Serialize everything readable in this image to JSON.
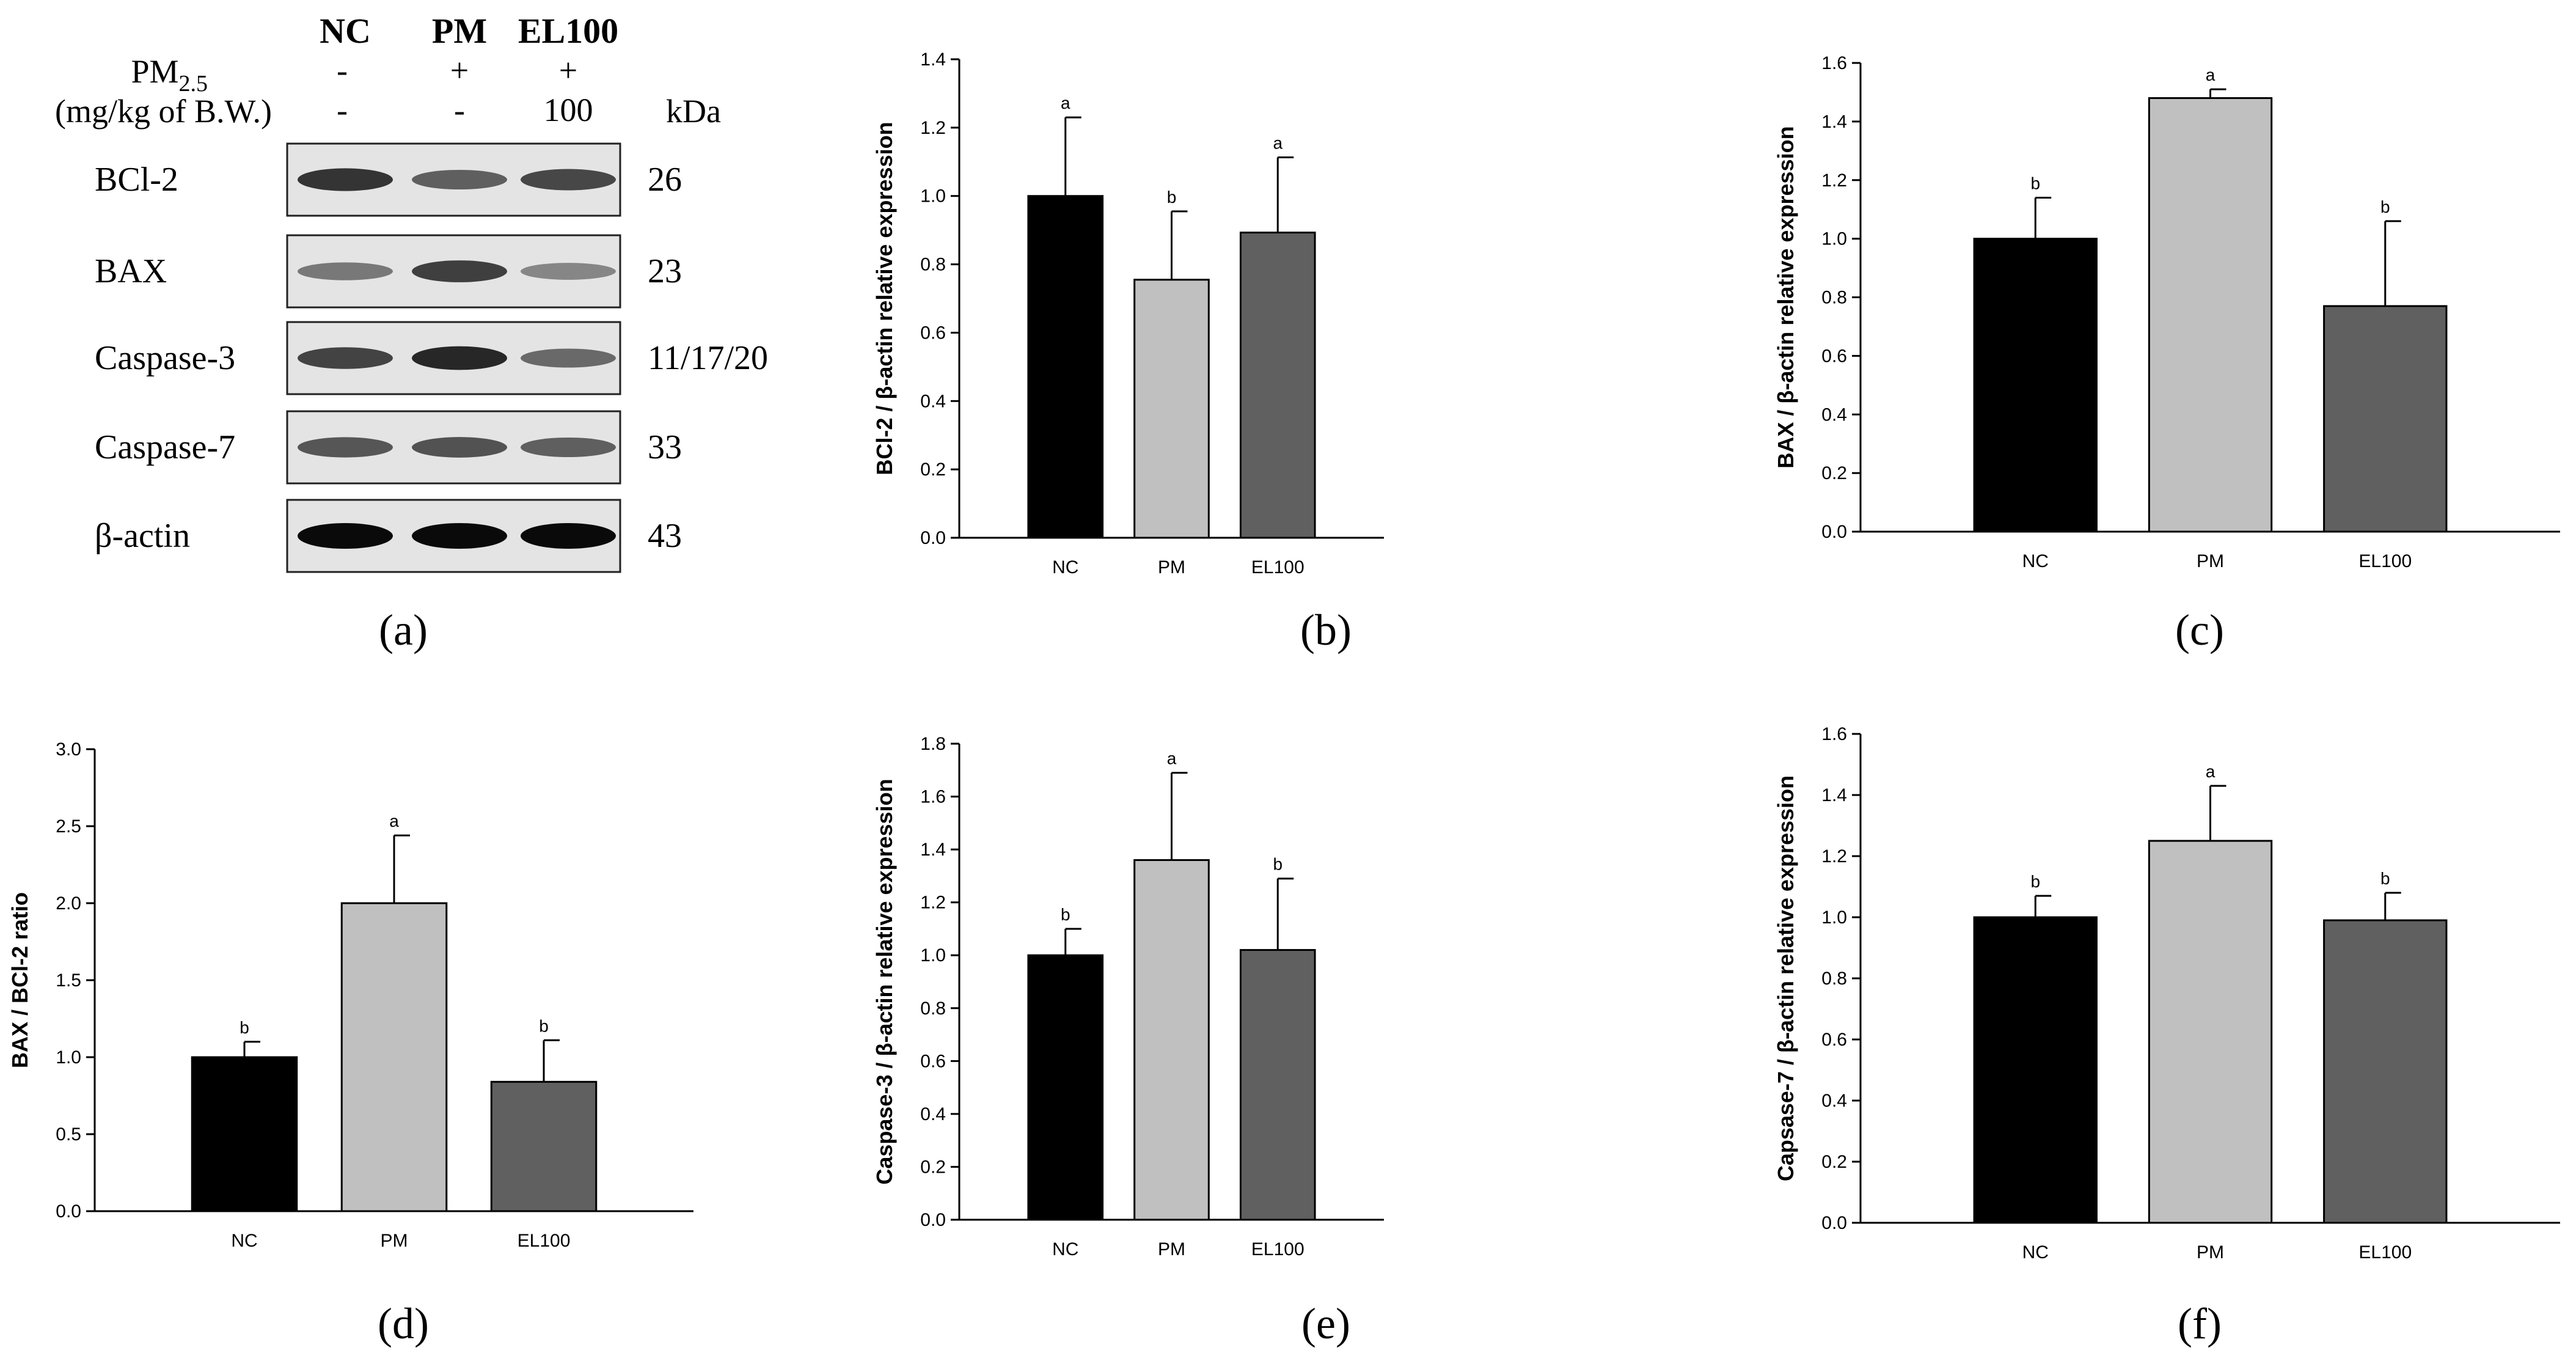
{
  "panel_labels": [
    "(a)",
    "(b)",
    "(c)",
    "(d)",
    "(e)",
    "(f)"
  ],
  "blot": {
    "lanes": [
      "NC",
      "PM",
      "EL100"
    ],
    "pm_label": "PM",
    "pm_sub": "2.5",
    "pm_values": [
      "-",
      "+",
      "+"
    ],
    "dose_label": "(mg/kg of B.W.)",
    "dose_values": [
      "-",
      "-",
      "100"
    ],
    "kda_label": "kDa",
    "rows": [
      {
        "protein": "BCl-2",
        "kda": "26",
        "intensity": [
          0.78,
          0.55,
          0.68
        ]
      },
      {
        "protein": "BAX",
        "kda": "23",
        "intensity": [
          0.42,
          0.72,
          0.35
        ]
      },
      {
        "protein": "Caspase-3",
        "kda": "11/17/20",
        "intensity": [
          0.7,
          0.85,
          0.5
        ]
      },
      {
        "protein": "Caspase-7",
        "kda": "33",
        "intensity": [
          0.6,
          0.62,
          0.55
        ]
      },
      {
        "protein": "β-actin",
        "kda": "43",
        "intensity": [
          1.0,
          1.0,
          1.0
        ]
      }
    ]
  },
  "colors": {
    "NC": "#000000",
    "PM": "#c0c0c0",
    "EL100": "#606060"
  },
  "chart_data": [
    {
      "id": "b",
      "type": "bar",
      "categories": [
        "NC",
        "PM",
        "EL100"
      ],
      "values": [
        1.0,
        0.755,
        0.893
      ],
      "errors": [
        0.23,
        0.2,
        0.22
      ],
      "sig": [
        "a",
        "b",
        "a"
      ],
      "ylabel": "BCl-2 / β-actin relative expression",
      "ylim": [
        0,
        1.4
      ],
      "ticks": [
        "0.0",
        "0.2",
        "0.4",
        "0.6",
        "0.8",
        "1.0",
        "1.2",
        "1.4"
      ]
    },
    {
      "id": "c",
      "type": "bar",
      "categories": [
        "NC",
        "PM",
        "EL100"
      ],
      "values": [
        1.0,
        1.48,
        0.77
      ],
      "errors": [
        0.14,
        0.03,
        0.29
      ],
      "sig": [
        "b",
        "a",
        "b"
      ],
      "ylabel": "BAX / β-actin relative expression",
      "ylim": [
        0,
        1.6
      ],
      "ticks": [
        "0.0",
        "0.2",
        "0.4",
        "0.6",
        "0.8",
        "1.0",
        "1.2",
        "1.4",
        "1.6"
      ]
    },
    {
      "id": "d",
      "type": "bar",
      "categories": [
        "NC",
        "PM",
        "EL100"
      ],
      "values": [
        1.0,
        2.0,
        0.84
      ],
      "errors": [
        0.1,
        0.44,
        0.27
      ],
      "sig": [
        "b",
        "a",
        "b"
      ],
      "ylabel": "BAX / BCl-2 ratio",
      "ylim": [
        0,
        3.0
      ],
      "ticks": [
        "0.0",
        "0.5",
        "1.0",
        "1.5",
        "2.0",
        "2.5",
        "3.0"
      ]
    },
    {
      "id": "e",
      "type": "bar",
      "categories": [
        "NC",
        "PM",
        "EL100"
      ],
      "values": [
        1.0,
        1.36,
        1.02
      ],
      "errors": [
        0.1,
        0.33,
        0.27
      ],
      "sig": [
        "b",
        "a",
        "b"
      ],
      "ylabel": "Caspase-3 / β-actin relative expression",
      "ylim": [
        0,
        1.8
      ],
      "ticks": [
        "0.0",
        "0.2",
        "0.4",
        "0.6",
        "0.8",
        "1.0",
        "1.2",
        "1.4",
        "1.6",
        "1.8"
      ]
    },
    {
      "id": "f",
      "type": "bar",
      "categories": [
        "NC",
        "PM",
        "EL100"
      ],
      "values": [
        1.0,
        1.25,
        0.99
      ],
      "errors": [
        0.07,
        0.18,
        0.09
      ],
      "sig": [
        "b",
        "a",
        "b"
      ],
      "ylabel": "Capsase-7 / β-actin relative expression",
      "ylim": [
        0,
        1.6
      ],
      "ticks": [
        "0.0",
        "0.2",
        "0.4",
        "0.6",
        "0.8",
        "1.0",
        "1.2",
        "1.4",
        "1.6"
      ]
    }
  ]
}
